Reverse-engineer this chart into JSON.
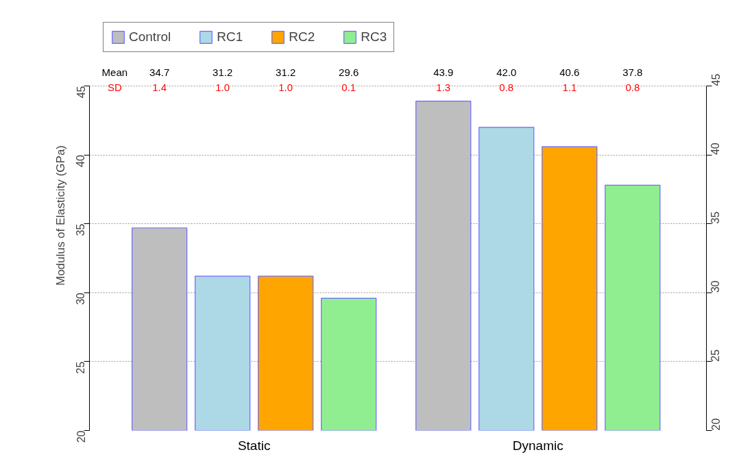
{
  "chart_data": {
    "type": "bar",
    "categories": [
      "Static",
      "Dynamic"
    ],
    "series": [
      {
        "name": "Control",
        "color": "#bebebe",
        "values": [
          34.7,
          43.9
        ]
      },
      {
        "name": "RC1",
        "color": "#add8e6",
        "values": [
          31.2,
          42.0
        ]
      },
      {
        "name": "RC2",
        "color": "#ffa500",
        "values": [
          31.2,
          40.6
        ]
      },
      {
        "name": "RC3",
        "color": "#90ee90",
        "values": [
          29.6,
          37.8
        ]
      }
    ],
    "ylabel": "Modulus of Elasticity (GPa)",
    "ylim": [
      20,
      45
    ],
    "yticks": [
      20,
      25,
      30,
      35,
      40,
      45
    ],
    "y2lim": [
      20,
      45
    ],
    "y2ticks": [
      20,
      25,
      30,
      35,
      40,
      45
    ],
    "grid": "y",
    "legend": "top",
    "annotations": [
      "Mean",
      "SD",
      "34.7",
      "31.2",
      "31.2",
      "29.6",
      "43.9",
      "42.0",
      "40.6",
      "37.8",
      "1.4",
      "1.0",
      "1.0",
      "0.1",
      "1.3",
      "0.8",
      "1.1",
      "0.8"
    ]
  }
}
